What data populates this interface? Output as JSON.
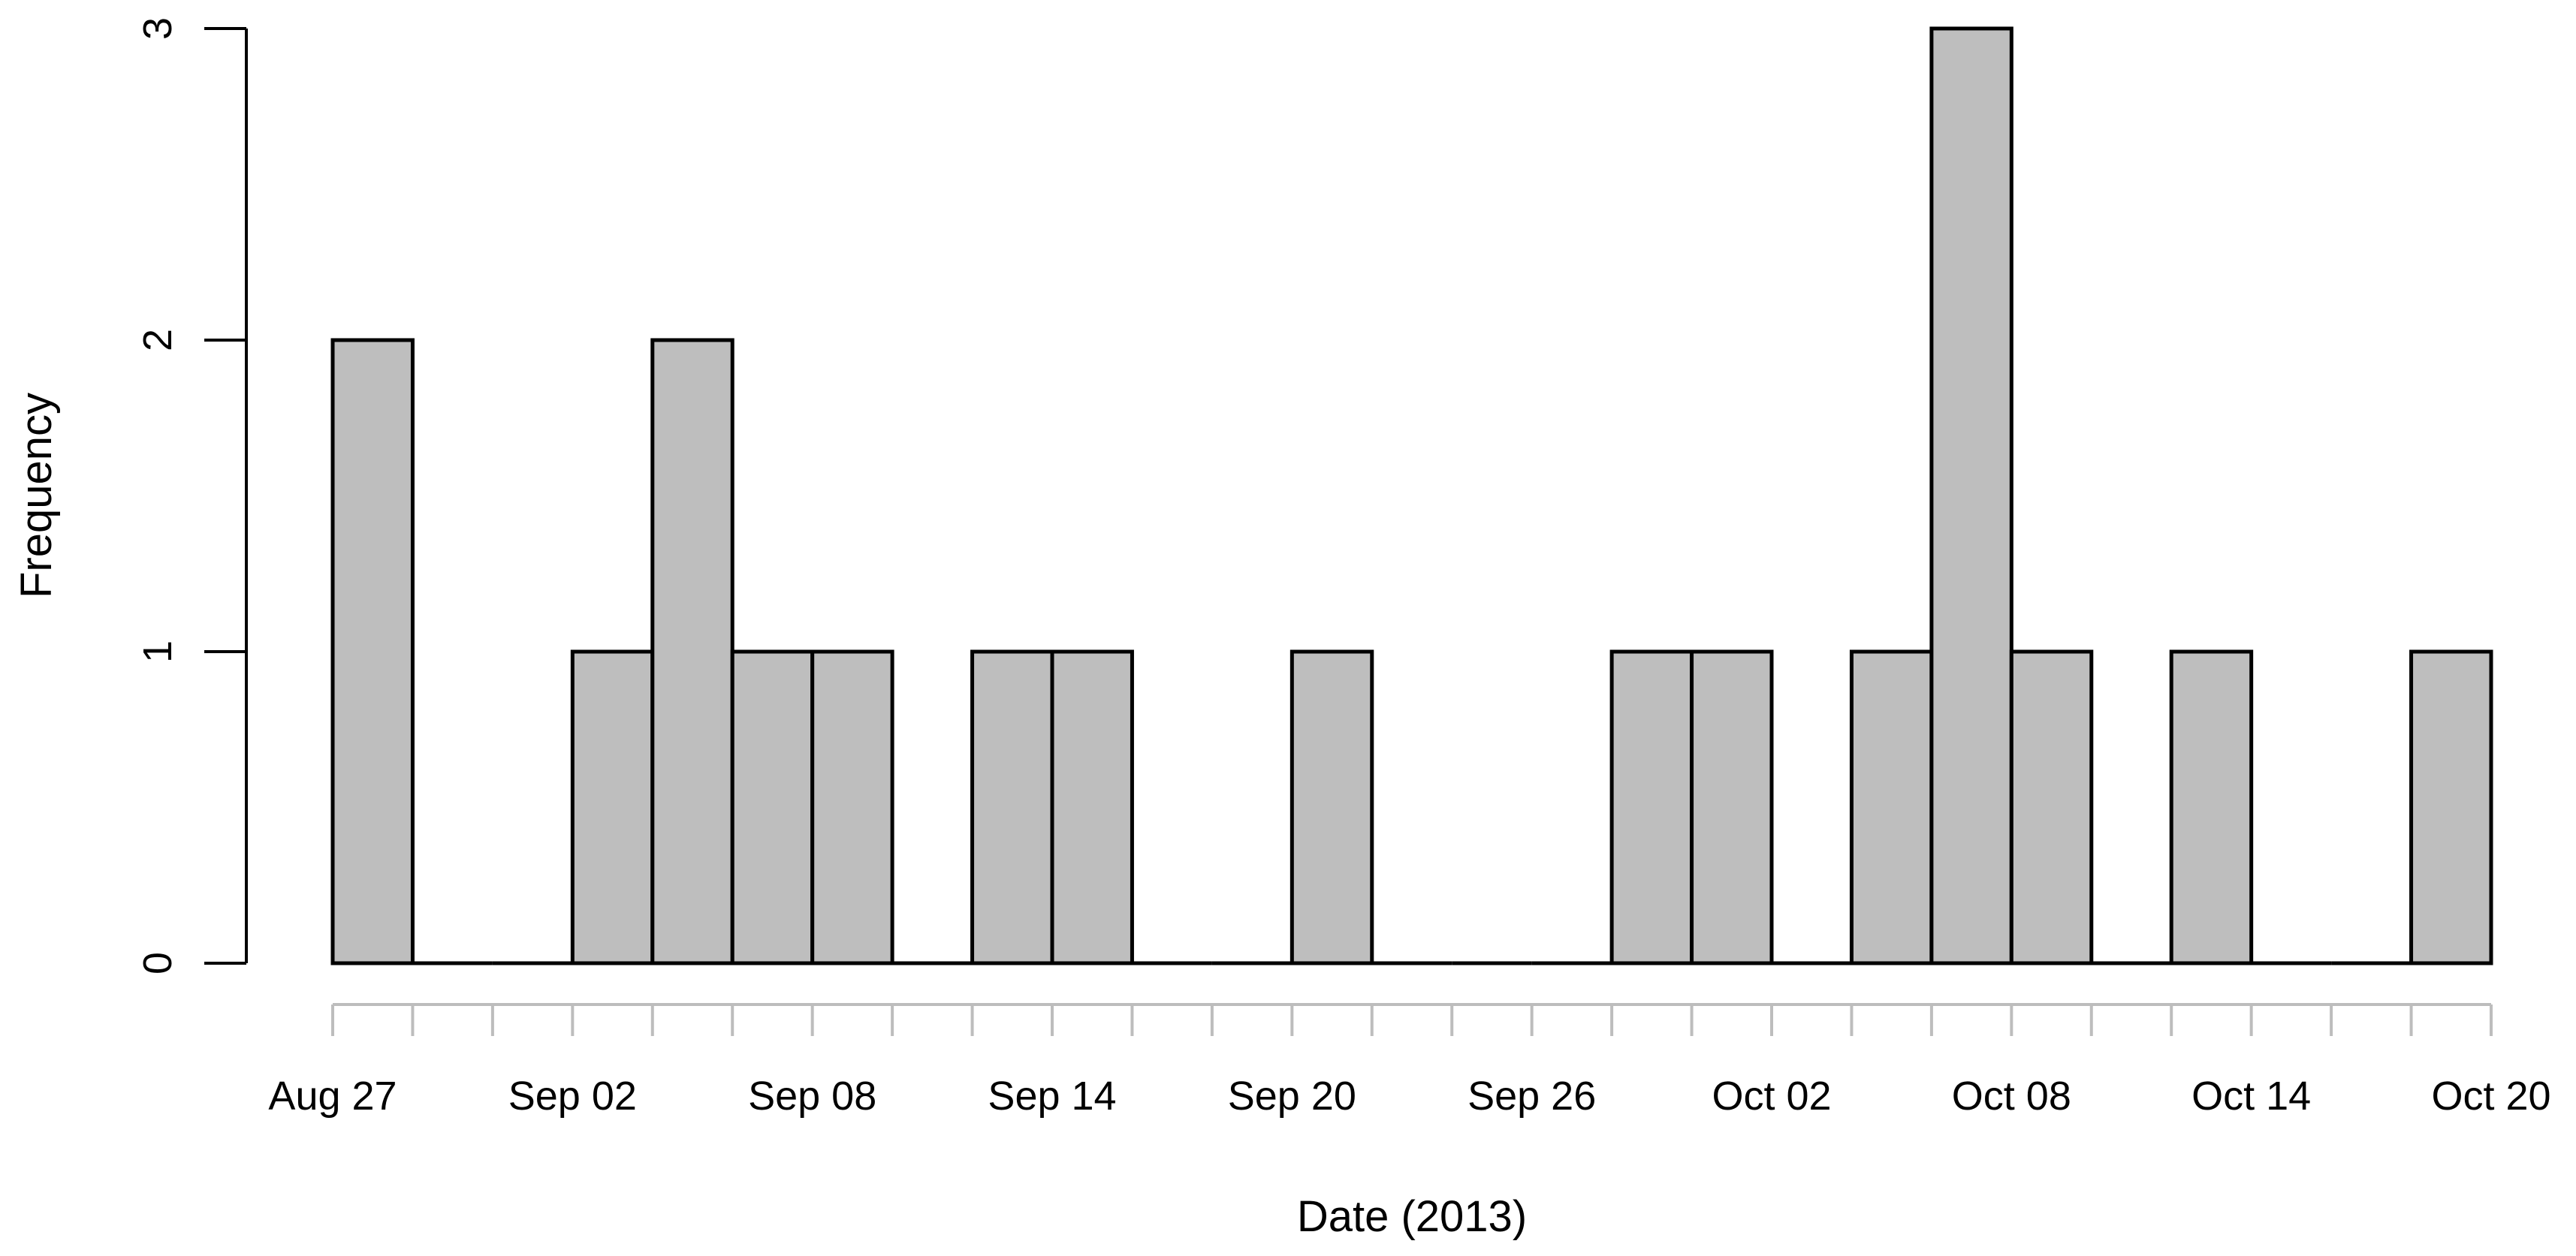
{
  "chart_data": {
    "type": "bar",
    "subtype": "histogram",
    "title": "",
    "xlabel": "Date (2013)",
    "ylabel": "Frequency",
    "bin_width_days": 2,
    "bin_start": "2013-08-26",
    "bins": [
      {
        "start": "2013-08-26",
        "end": "2013-08-28",
        "count": 2
      },
      {
        "start": "2013-08-28",
        "end": "2013-08-30",
        "count": 0
      },
      {
        "start": "2013-08-30",
        "end": "2013-09-01",
        "count": 0
      },
      {
        "start": "2013-09-01",
        "end": "2013-09-03",
        "count": 1
      },
      {
        "start": "2013-09-03",
        "end": "2013-09-05",
        "count": 2
      },
      {
        "start": "2013-09-05",
        "end": "2013-09-07",
        "count": 1
      },
      {
        "start": "2013-09-07",
        "end": "2013-09-09",
        "count": 1
      },
      {
        "start": "2013-09-09",
        "end": "2013-09-11",
        "count": 0
      },
      {
        "start": "2013-09-11",
        "end": "2013-09-13",
        "count": 1
      },
      {
        "start": "2013-09-13",
        "end": "2013-09-15",
        "count": 1
      },
      {
        "start": "2013-09-15",
        "end": "2013-09-17",
        "count": 0
      },
      {
        "start": "2013-09-17",
        "end": "2013-09-19",
        "count": 0
      },
      {
        "start": "2013-09-19",
        "end": "2013-09-21",
        "count": 1
      },
      {
        "start": "2013-09-21",
        "end": "2013-09-23",
        "count": 0
      },
      {
        "start": "2013-09-23",
        "end": "2013-09-25",
        "count": 0
      },
      {
        "start": "2013-09-25",
        "end": "2013-09-27",
        "count": 0
      },
      {
        "start": "2013-09-27",
        "end": "2013-09-29",
        "count": 1
      },
      {
        "start": "2013-09-29",
        "end": "2013-10-01",
        "count": 1
      },
      {
        "start": "2013-10-01",
        "end": "2013-10-03",
        "count": 0
      },
      {
        "start": "2013-10-03",
        "end": "2013-10-05",
        "count": 1
      },
      {
        "start": "2013-10-05",
        "end": "2013-10-07",
        "count": 3
      },
      {
        "start": "2013-10-07",
        "end": "2013-10-09",
        "count": 1
      },
      {
        "start": "2013-10-09",
        "end": "2013-10-11",
        "count": 0
      },
      {
        "start": "2013-10-11",
        "end": "2013-10-13",
        "count": 1
      },
      {
        "start": "2013-10-13",
        "end": "2013-10-15",
        "count": 0
      },
      {
        "start": "2013-10-15",
        "end": "2013-10-17",
        "count": 0
      },
      {
        "start": "2013-10-17",
        "end": "2013-10-19",
        "count": 1
      }
    ],
    "xlim": [
      "2013-08-26",
      "2013-10-19"
    ],
    "ylim": [
      0,
      3
    ],
    "yticks": [
      "0",
      "1",
      "2",
      "3"
    ],
    "xticks": [
      {
        "date": "2013-08-26",
        "label": "Aug 27"
      },
      {
        "date": "2013-09-01",
        "label": "Sep 02"
      },
      {
        "date": "2013-09-07",
        "label": "Sep 08"
      },
      {
        "date": "2013-09-13",
        "label": "Sep 14"
      },
      {
        "date": "2013-09-19",
        "label": "Sep 20"
      },
      {
        "date": "2013-09-25",
        "label": "Sep 26"
      },
      {
        "date": "2013-10-01",
        "label": "Oct 02"
      },
      {
        "date": "2013-10-07",
        "label": "Oct 08"
      },
      {
        "date": "2013-10-13",
        "label": "Oct 14"
      },
      {
        "date": "2013-10-19",
        "label": "Oct 20"
      }
    ],
    "grid": false,
    "legend": "none",
    "bar_color": "#bebebe",
    "edge_color": "#000000",
    "x_axis_color": "#bdbdbd"
  }
}
